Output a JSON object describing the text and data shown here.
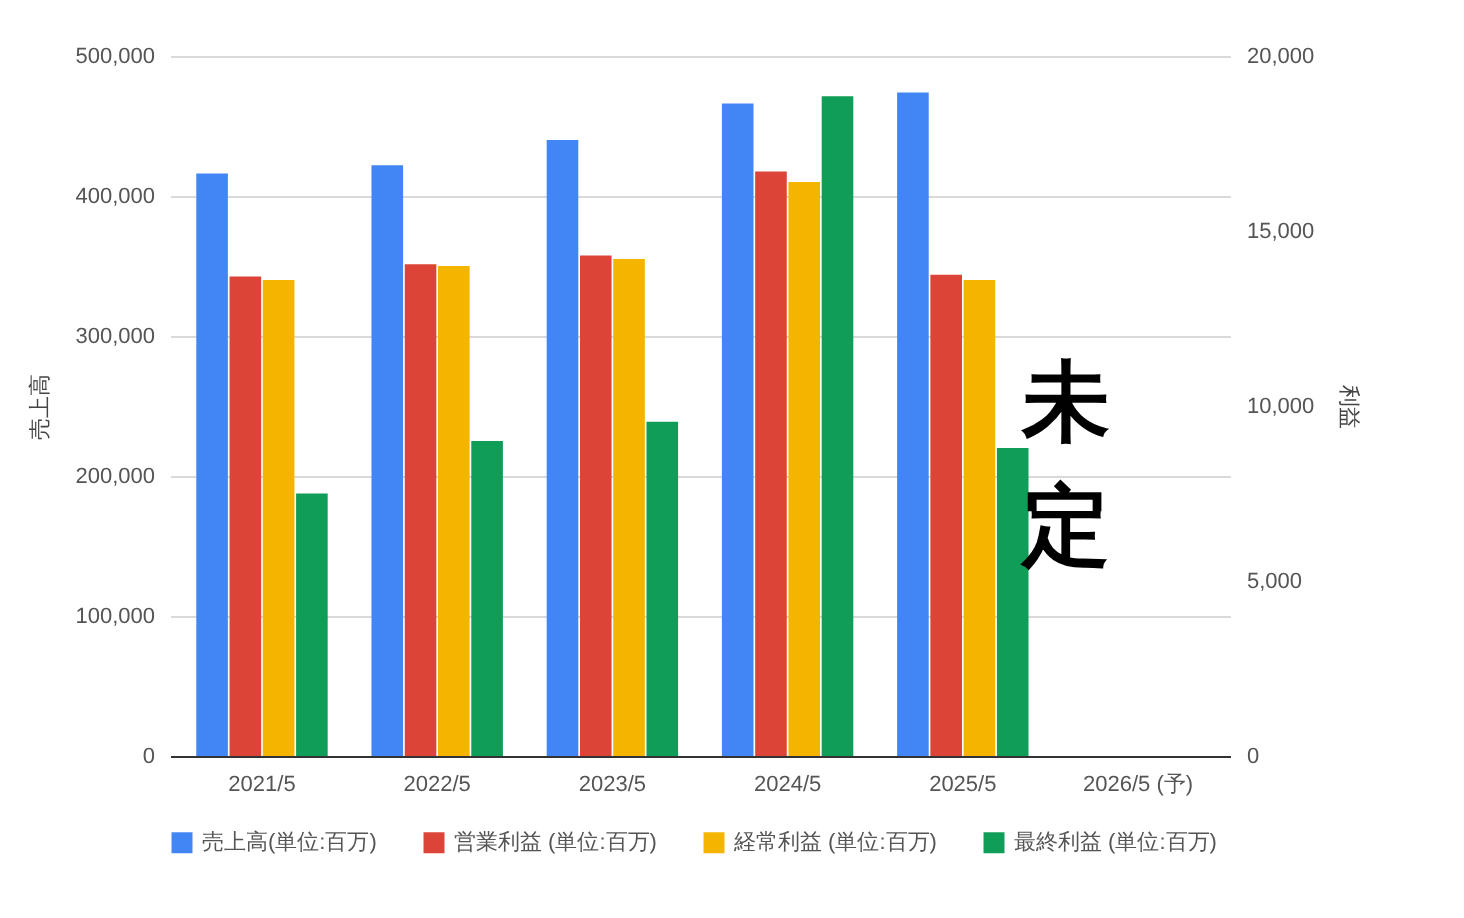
{
  "chart_data": {
    "type": "bar",
    "ylabel": "売上高",
    "y2label": "利益",
    "categories": [
      "2021/5",
      "2022/5",
      "2023/5",
      "2024/5",
      "2025/5",
      "2026/5 (予)"
    ],
    "series": [
      {
        "name": "売上高(単位:百万)",
        "color": "#4285f4",
        "values": [
          416000,
          422000,
          440000,
          466000,
          474000,
          null
        ]
      },
      {
        "name": "営業利益 (単位:百万)",
        "color": "#db4437",
        "axis": "y2",
        "values": [
          13700,
          14050,
          14300,
          16700,
          13750,
          null
        ]
      },
      {
        "name": "経常利益 (単位:百万)",
        "color": "#f4b400",
        "axis": "y2",
        "values": [
          13600,
          14000,
          14200,
          16400,
          13600,
          null
        ]
      },
      {
        "name": "最終利益 (単位:百万)",
        "color": "#0f9d58",
        "axis": "y2",
        "values": [
          7500,
          9000,
          9550,
          18850,
          8800,
          null
        ]
      }
    ],
    "ylim": [
      0,
      500000
    ],
    "yticks": [
      0,
      {
        "value": 100000,
        "label": "100,000"
      },
      {
        "value": 200000,
        "label": "200,000"
      },
      {
        "value": 300000,
        "label": "300,000"
      },
      {
        "value": 400000,
        "label": "400,000"
      },
      {
        "value": 500000,
        "label": "500,000"
      }
    ],
    "y2lim": [
      0,
      20000
    ],
    "y2ticks": [
      0,
      {
        "value": 5000,
        "label": "5,000"
      },
      {
        "value": 10000,
        "label": "10,000"
      },
      {
        "value": 15000,
        "label": "15,000"
      },
      {
        "value": 20000,
        "label": "20,000"
      }
    ],
    "grid": true,
    "legend": "bottom",
    "annotations": [
      "未定"
    ]
  }
}
